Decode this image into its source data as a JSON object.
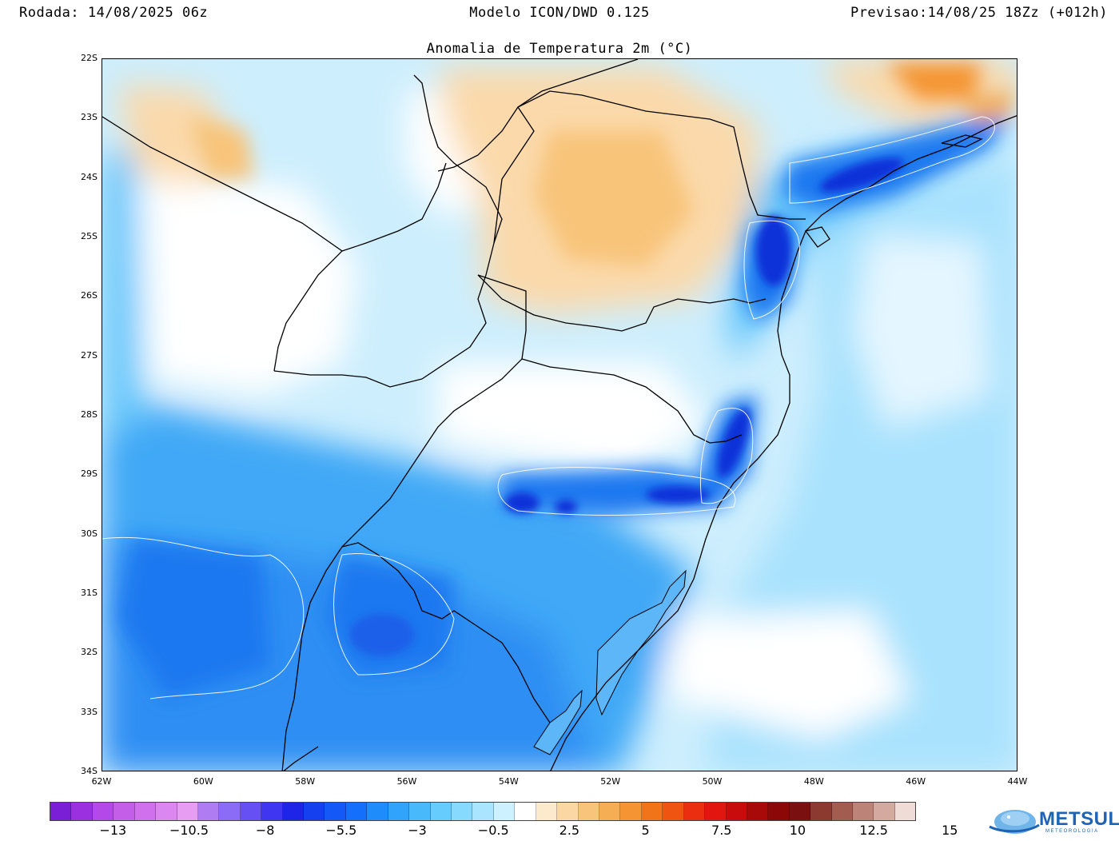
{
  "header": {
    "run": "Rodada: 14/08/2025 06z",
    "model": "Modelo ICON/DWD 0.125",
    "forecast": "Previsao:14/08/25 18Zz (+012h)"
  },
  "map": {
    "title": "Anomalia de Temperatura 2m (°C)",
    "lat_ticks": [
      "22S",
      "23S",
      "24S",
      "25S",
      "26S",
      "27S",
      "28S",
      "29S",
      "30S",
      "31S",
      "32S",
      "33S",
      "34S"
    ],
    "lon_ticks": [
      "62W",
      "60W",
      "58W",
      "56W",
      "54W",
      "52W",
      "50W",
      "48W",
      "46W",
      "44W"
    ]
  },
  "colorbar": {
    "colors": [
      "#7a1fd6",
      "#9b30e0",
      "#b448e8",
      "#c45ee8",
      "#d070ec",
      "#dc86ef",
      "#e69df2",
      "#b07cf2",
      "#8a6cf6",
      "#6650f4",
      "#3e36f0",
      "#1f25e8",
      "#1540f0",
      "#1458f8",
      "#1470fb",
      "#1e8cfb",
      "#30a4fc",
      "#48bafc",
      "#66ccfd",
      "#88d9fe",
      "#a9e5fe",
      "#cdf1ff",
      "#ffffff",
      "#fde9cc",
      "#fbd7a4",
      "#f8c47a",
      "#f6ae55",
      "#f49432",
      "#f27418",
      "#ef5410",
      "#eb2d10",
      "#e21510",
      "#c80c0c",
      "#a80a0a",
      "#8c0808",
      "#7a1010",
      "#8c3a30",
      "#a25c50",
      "#bc8478",
      "#d4aaa0",
      "#f0dcd6"
    ],
    "labels": [
      "−13",
      "−10.5",
      "−8",
      "−5.5",
      "−3",
      "−0.5",
      "2.5",
      "5",
      "7.5",
      "10",
      "12.5",
      "15"
    ]
  },
  "logo": {
    "name": "METSUL",
    "subtitle": "METEOROLOGIA"
  },
  "legend_colors": {
    "land_neutral": "#ffffff",
    "light_warm": "#fbd9aa",
    "warm": "#f4a640",
    "light_cool": "#cdeefd",
    "cool": "#88d2fb",
    "cold": "#3fa8f6",
    "colder": "#1f78f0",
    "coldest": "#1030d8"
  }
}
